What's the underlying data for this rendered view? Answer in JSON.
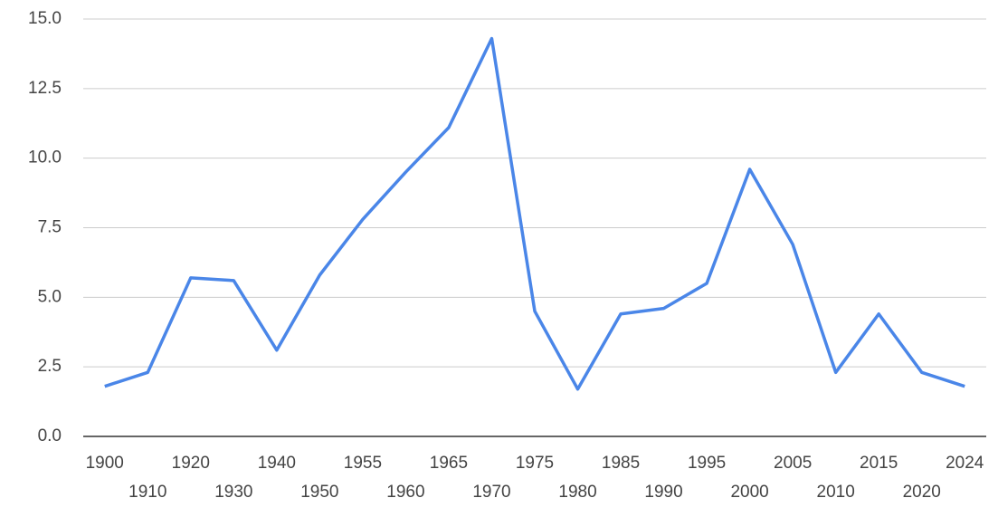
{
  "chart_data": {
    "type": "line",
    "categories": [
      "1900",
      "1910",
      "1920",
      "1930",
      "1940",
      "1950",
      "1955",
      "1960",
      "1965",
      "1970",
      "1975",
      "1980",
      "1985",
      "1990",
      "1995",
      "2000",
      "2005",
      "2010",
      "2015",
      "2020",
      "2024"
    ],
    "series": [
      {
        "color": "#4a86e8",
        "values": [
          1.8,
          2.3,
          5.7,
          5.6,
          3.1,
          5.8,
          7.8,
          9.5,
          11.1,
          14.3,
          4.5,
          1.7,
          4.4,
          4.6,
          5.5,
          9.6,
          6.9,
          2.3,
          4.4,
          2.3,
          1.8
        ]
      }
    ],
    "ylim": [
      0,
      15
    ],
    "yticks": [
      {
        "value": 0,
        "label": "0.0"
      },
      2.5,
      {
        "value": 5,
        "label": "5.0"
      },
      7.5,
      {
        "value": 10,
        "label": "10.0"
      },
      12.5,
      {
        "value": 15,
        "label": "15.0"
      }
    ],
    "grid": true
  }
}
